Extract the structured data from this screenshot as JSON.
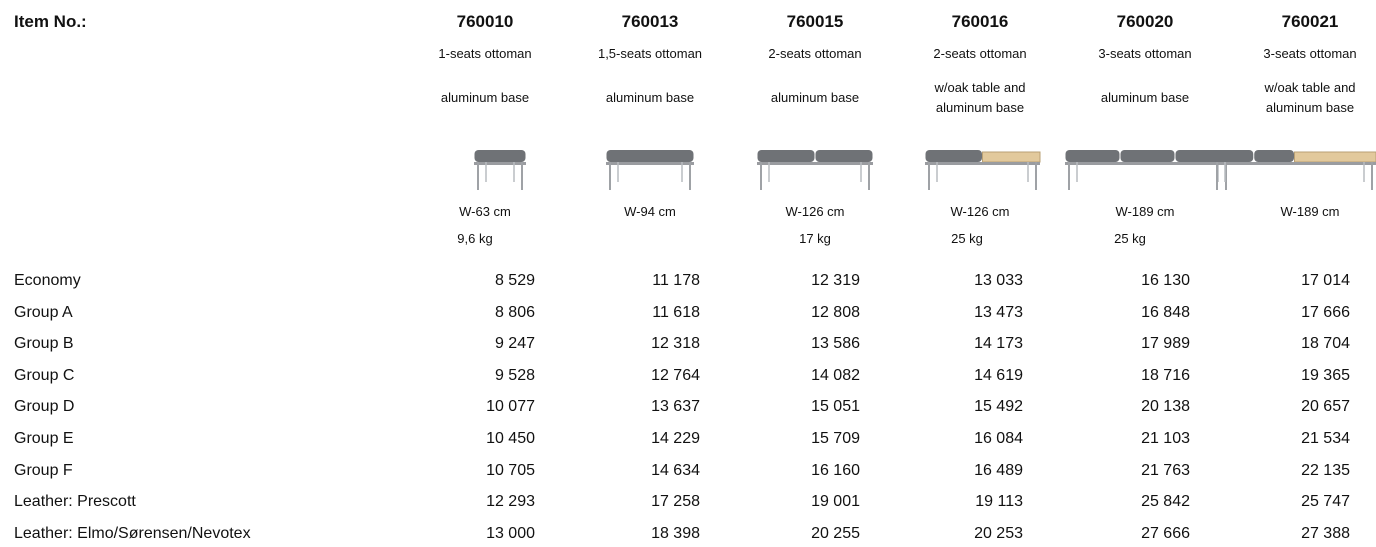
{
  "header": {
    "label": "Item No.:"
  },
  "columns": [
    {
      "item_no": "760010",
      "name": "1-seats ottoman",
      "base": [
        "aluminum base"
      ],
      "width": "W-63 cm",
      "weight": "9,6 kg"
    },
    {
      "item_no": "760013",
      "name": "1,5-seats ottoman",
      "base": [
        "aluminum base"
      ],
      "width": "W-94 cm"
    },
    {
      "item_no": "760015",
      "name": "2-seats ottoman",
      "base": [
        "aluminum base"
      ],
      "width": "W-126 cm",
      "weight": "17 kg"
    },
    {
      "item_no": "760016",
      "name": "2-seats ottoman",
      "base": [
        "w/oak table and",
        "aluminum base"
      ],
      "width": "W-126 cm",
      "weight": "25 kg"
    },
    {
      "item_no": "760020",
      "name": "3-seats ottoman",
      "base": [
        "aluminum base"
      ],
      "width": "W-189 cm",
      "weight": "25 kg"
    },
    {
      "item_no": "760021",
      "name": "3-seats ottoman",
      "base": [
        "w/oak table and",
        "aluminum base"
      ],
      "width": "W-189 cm"
    }
  ],
  "rows": [
    {
      "label": "Economy",
      "values": [
        "8 529",
        "11 178",
        "12 319",
        "13 033",
        "16 130",
        "17 014"
      ]
    },
    {
      "label": "Group A",
      "values": [
        "8 806",
        "11 618",
        "12 808",
        "13 473",
        "16 848",
        "17 666"
      ]
    },
    {
      "label": "Group B",
      "values": [
        "9 247",
        "12 318",
        "13 586",
        "14 173",
        "17 989",
        "18 704"
      ]
    },
    {
      "label": "Group C",
      "values": [
        "9 528",
        "12 764",
        "14 082",
        "14 619",
        "18 716",
        "19 365"
      ]
    },
    {
      "label": "Group D",
      "values": [
        "10 077",
        "13 637",
        "15 051",
        "15 492",
        "20 138",
        "20 657"
      ]
    },
    {
      "label": "Group E",
      "values": [
        "10 450",
        "14 229",
        "15 709",
        "16 084",
        "21 103",
        "21 534"
      ]
    },
    {
      "label": "Group F",
      "values": [
        "10 705",
        "14 634",
        "16 160",
        "16 489",
        "21 763",
        "22 135"
      ]
    },
    {
      "label": "Leather: Prescott",
      "values": [
        "12 293",
        "17 258",
        "19 001",
        "19 113",
        "25 842",
        "25 747"
      ]
    },
    {
      "label": "Leather: Elmo/Sørensen/Nevotex",
      "values": [
        "13 000",
        "18 398",
        "20 255",
        "20 253",
        "27 666",
        "27 388"
      ]
    }
  ]
}
